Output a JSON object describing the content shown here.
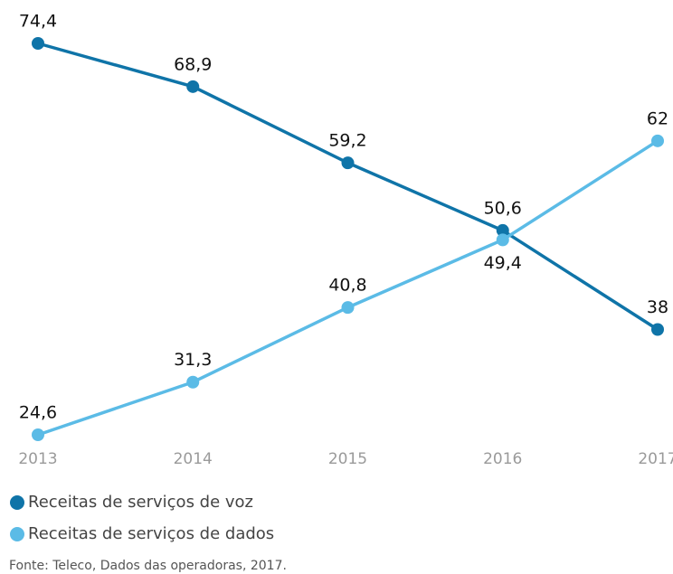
{
  "chart_data": {
    "type": "line",
    "categories": [
      "2013",
      "2014",
      "2015",
      "2016",
      "2017"
    ],
    "series": [
      {
        "name": "Receitas de serviços de voz",
        "color": "#0f74a8",
        "values": [
          74.4,
          68.9,
          59.2,
          50.6,
          38
        ],
        "value_labels": [
          "74,4",
          "68,9",
          "59,2",
          "50,6",
          "38"
        ]
      },
      {
        "name": "Receitas de serviços de dados",
        "color": "#5bbbe6",
        "values": [
          24.6,
          31.3,
          40.8,
          49.4,
          62
        ],
        "value_labels": [
          "24,6",
          "31,3",
          "40,8",
          "49,4",
          "62"
        ]
      }
    ],
    "source": "Fonte: Teleco, Dados das operadoras, 2017."
  }
}
